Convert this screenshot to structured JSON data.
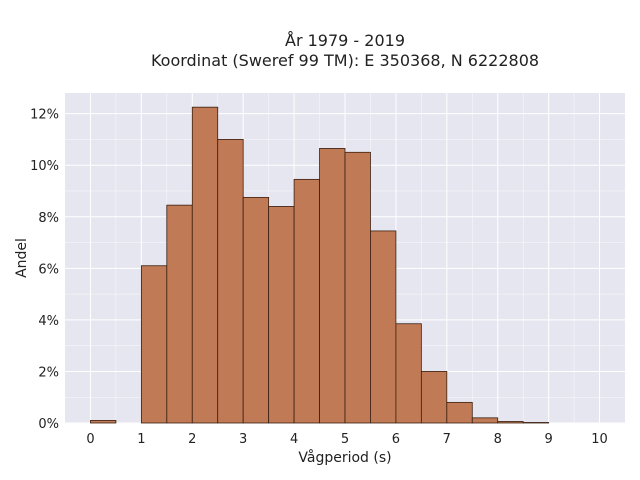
{
  "chart_data": {
    "type": "bar",
    "title_lines": [
      "År 1979 - 2019",
      "Koordinat (Sweref 99 TM): E 350368, N 6222808"
    ],
    "xlabel": "Vågperiod (s)",
    "ylabel": "Andel",
    "xlim": [
      -0.5,
      10.5
    ],
    "ylim": [
      0,
      12.8
    ],
    "x_ticks": [
      0,
      1,
      2,
      3,
      4,
      5,
      6,
      7,
      8,
      9,
      10
    ],
    "x_tick_labels": [
      "0",
      "1",
      "2",
      "3",
      "4",
      "5",
      "6",
      "7",
      "8",
      "9",
      "10"
    ],
    "y_ticks": [
      0,
      2,
      4,
      6,
      8,
      10,
      12
    ],
    "y_tick_labels": [
      "0%",
      "2%",
      "4%",
      "6%",
      "8%",
      "10%",
      "12%"
    ],
    "bin_width": 0.5,
    "bins": [
      {
        "start": 0.0,
        "value": 0.1
      },
      {
        "start": 0.5,
        "value": 0.0
      },
      {
        "start": 1.0,
        "value": 6.1
      },
      {
        "start": 1.5,
        "value": 8.45
      },
      {
        "start": 2.0,
        "value": 12.25
      },
      {
        "start": 2.5,
        "value": 11.0
      },
      {
        "start": 3.0,
        "value": 8.75
      },
      {
        "start": 3.5,
        "value": 8.4
      },
      {
        "start": 4.0,
        "value": 9.45
      },
      {
        "start": 4.5,
        "value": 10.65
      },
      {
        "start": 5.0,
        "value": 10.5
      },
      {
        "start": 5.5,
        "value": 7.45
      },
      {
        "start": 6.0,
        "value": 3.85
      },
      {
        "start": 6.5,
        "value": 2.0
      },
      {
        "start": 7.0,
        "value": 0.8
      },
      {
        "start": 7.5,
        "value": 0.2
      },
      {
        "start": 8.0,
        "value": 0.06
      },
      {
        "start": 8.5,
        "value": 0.02
      }
    ],
    "grid": true,
    "colors": {
      "bar_fill": "#c07a56",
      "bar_edge": "#3b1f10",
      "plot_background": "#e6e6f0",
      "grid": "#ffffff"
    }
  }
}
